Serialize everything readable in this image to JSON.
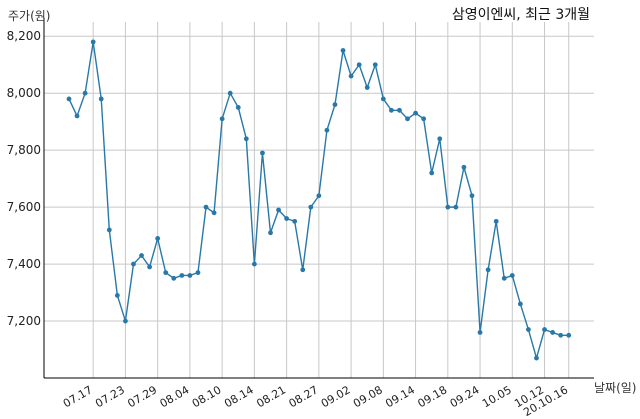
{
  "chart_data": {
    "type": "line",
    "title": "삼영이엔씨, 최근 3개월",
    "ylabel": "주가(원)",
    "xlabel": "날짜(일)",
    "ylim": [
      7000,
      8250
    ],
    "yticks": [
      7200,
      7400,
      7600,
      7800,
      8000,
      8200
    ],
    "ytick_labels": [
      "7,200",
      "7,400",
      "7,600",
      "7,800",
      "8,000",
      "8,200"
    ],
    "xtick_labels": [
      "07.17",
      "07.23",
      "07.29",
      "08.04",
      "08.10",
      "08.14",
      "08.21",
      "08.27",
      "09.02",
      "09.08",
      "09.14",
      "09.18",
      "09.24",
      "10.05",
      "10.12",
      "20.10.16"
    ],
    "xtick_index": [
      3,
      7,
      11,
      15,
      19,
      23,
      27,
      31,
      35,
      39,
      43,
      47,
      51,
      55,
      59,
      62
    ],
    "grid": true,
    "color": "#2878a8",
    "values": [
      7980,
      7920,
      8000,
      8180,
      7980,
      7520,
      7290,
      7200,
      7400,
      7430,
      7390,
      7490,
      7370,
      7350,
      7360,
      7360,
      7370,
      7600,
      7580,
      7910,
      8000,
      7950,
      7840,
      7400,
      7790,
      7510,
      7590,
      7560,
      7550,
      7380,
      7600,
      7640,
      7870,
      7960,
      8150,
      8060,
      8100,
      8020,
      8100,
      7980,
      7940,
      7940,
      7910,
      7930,
      7910,
      7720,
      7840,
      7600,
      7600,
      7740,
      7640,
      7160,
      7380,
      7550,
      7350,
      7360,
      7260,
      7170,
      7070,
      7170,
      7160,
      7150,
      7150
    ]
  }
}
